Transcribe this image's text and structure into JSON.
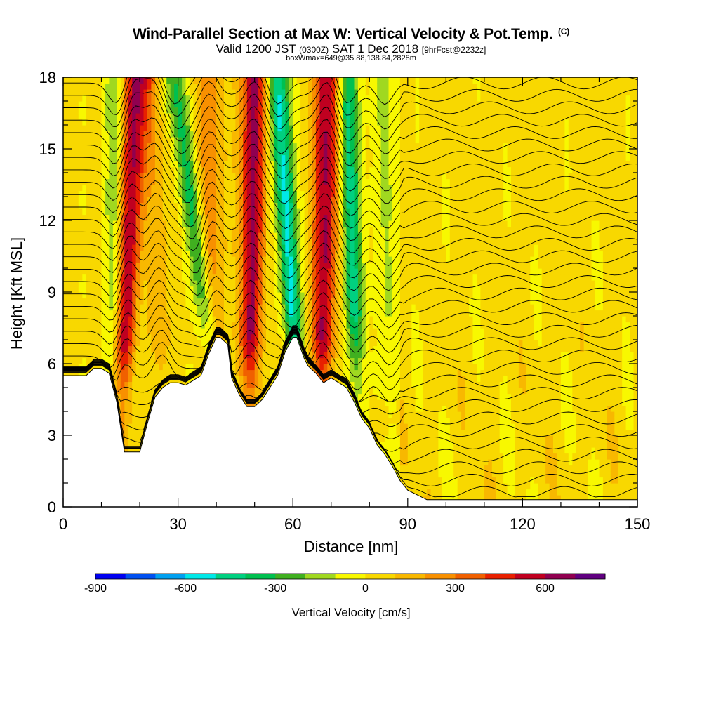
{
  "title": "Wind-Parallel Section at Max W: Vertical Velocity & Pot.Temp.",
  "title_tag": "(C)",
  "subtitle_main_1": "Valid 1200 JST",
  "subtitle_utc": "(0300Z)",
  "subtitle_main_2": "SAT 1 Dec 2018",
  "subtitle_fcst": "[9hrFcst@2232z]",
  "subsubtitle": "boxWmax=649@35.88,138.84,2828m",
  "chart_data": {
    "type": "heatmap",
    "xlabel": "Distance [nm]",
    "ylabel": "Height [Kft MSL]",
    "xlim": [
      0,
      150
    ],
    "ylim": [
      0,
      18
    ],
    "x_ticks": [
      0,
      30,
      60,
      90,
      120,
      150
    ],
    "y_ticks": [
      0,
      3,
      6,
      9,
      12,
      15,
      18
    ],
    "colorbar": {
      "label": "Vertical Velocity [cm/s]",
      "ticks": [
        -900,
        -600,
        -300,
        0,
        300,
        600
      ],
      "range": [
        -900,
        800
      ],
      "colors": [
        "#0000f0",
        "#0050f0",
        "#00a0f0",
        "#00e8e8",
        "#00d080",
        "#00c050",
        "#40b020",
        "#a0d820",
        "#f8f800",
        "#f8d800",
        "#f8b800",
        "#f89000",
        "#f06000",
        "#e82000",
        "#c00020",
        "#900050",
        "#600080"
      ]
    },
    "updrafts": [
      {
        "x_base": 14,
        "x_top": 19,
        "w_max": 600
      },
      {
        "x_base": 48,
        "x_top": 50,
        "w_max": 600
      },
      {
        "x_base": 67,
        "x_top": 69,
        "w_max": 600
      },
      {
        "x_base": 40,
        "x_top": 38,
        "w_max": 250
      },
      {
        "x_base": 27,
        "x_top": 23,
        "w_max": 150
      }
    ],
    "downdrafts": [
      {
        "x_base": 13,
        "x_top": 14,
        "w_min": -250
      },
      {
        "x_base": 44,
        "x_top": 29,
        "w_min": -350
      },
      {
        "x_base": 63,
        "x_top": 56,
        "w_min": -550
      },
      {
        "x_base": 78,
        "x_top": 74,
        "w_min": -450
      },
      {
        "x_base": 86,
        "x_top": 84,
        "w_min": -150
      }
    ],
    "terrain_height_kft": {
      "x": [
        0,
        6,
        8,
        10,
        12,
        14,
        16,
        20,
        22,
        24,
        26,
        28,
        30,
        32,
        34,
        36,
        38,
        40,
        41,
        43,
        44,
        46,
        48,
        50,
        52,
        54,
        56,
        58,
        60,
        61,
        63,
        64,
        66,
        68,
        70,
        72,
        74,
        76,
        78,
        80,
        82,
        84,
        86,
        88,
        90,
        95,
        100,
        150
      ],
      "h": [
        5.5,
        5.5,
        5.8,
        5.8,
        5.6,
        4.4,
        2.3,
        2.3,
        3.5,
        4.6,
        5.0,
        5.2,
        5.2,
        5.1,
        5.3,
        5.5,
        6.4,
        7.1,
        7.1,
        6.8,
        5.4,
        4.7,
        4.2,
        4.2,
        4.5,
        5.0,
        5.5,
        6.5,
        7.1,
        7.1,
        6.2,
        5.9,
        5.6,
        5.2,
        5.4,
        5.2,
        5.0,
        4.4,
        3.7,
        3.3,
        2.6,
        2.2,
        1.7,
        1.1,
        0.7,
        0.3,
        0.3,
        0.3
      ]
    },
    "theta_contours": "potential temperature isolines (C), labeled in plot"
  }
}
